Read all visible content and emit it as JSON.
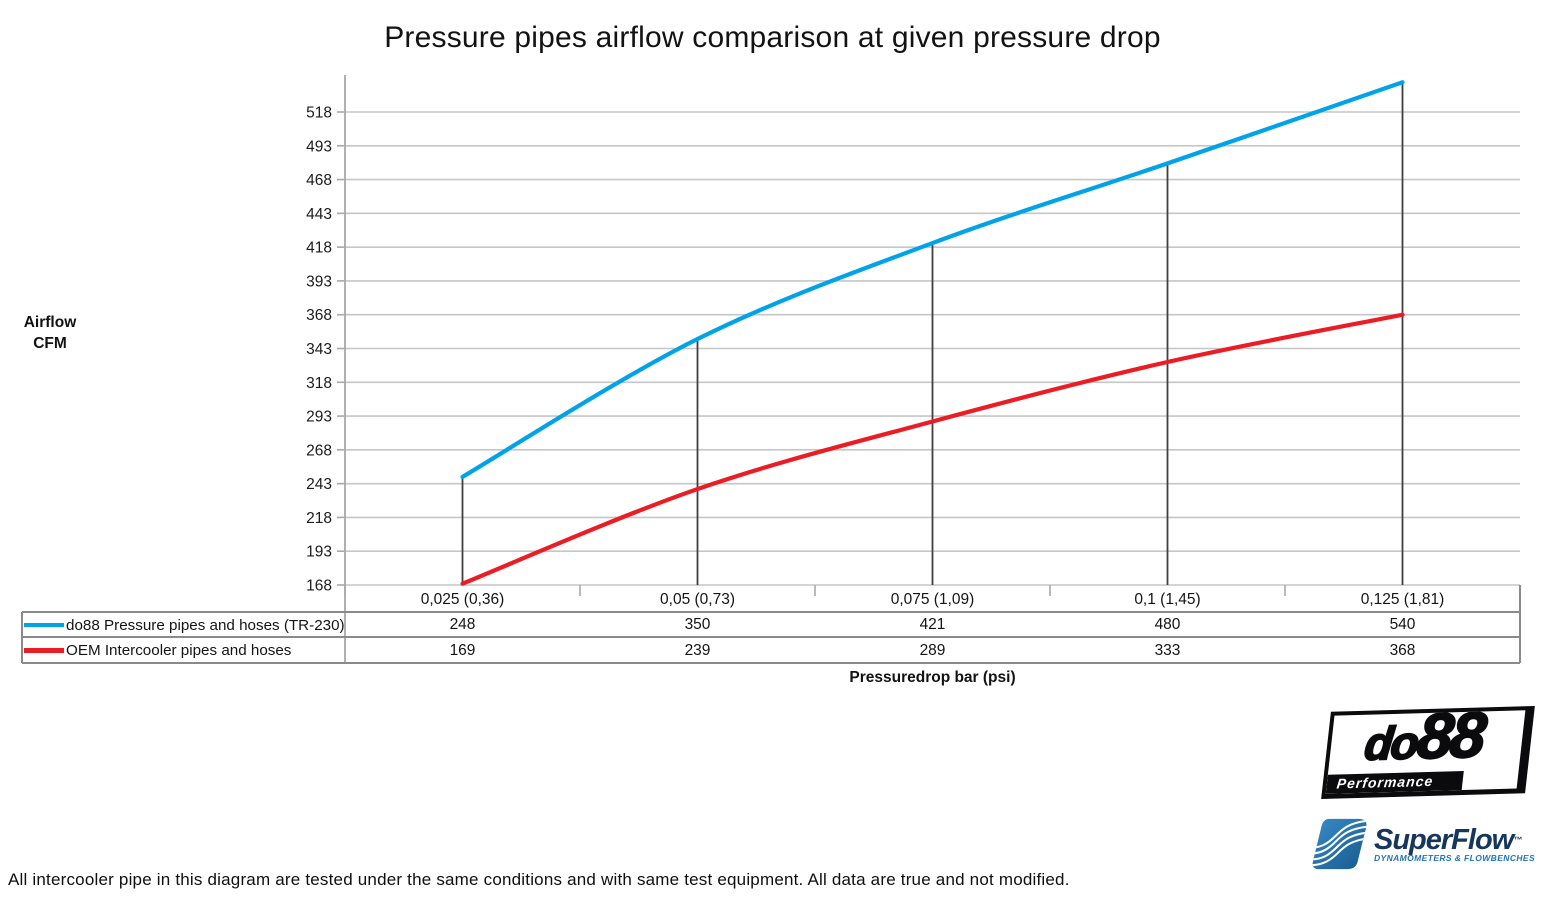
{
  "page": {
    "footnote": "All intercooler pipe in this diagram are tested under the same conditions and with same test equipment. All data are true and not modified."
  },
  "chart_data": {
    "type": "line",
    "title": "Pressure pipes airflow comparison at given pressure drop",
    "xlabel": "Pressuredrop bar (psi)",
    "ylabel": "Airflow CFM",
    "ylabel_lines": [
      "Airflow",
      "CFM"
    ],
    "categories": [
      "0,025 (0,36)",
      "0,05 (0,73)",
      "0,075 (1,09)",
      "0,1 (1,45)",
      "0,125 (1,81)"
    ],
    "series": [
      {
        "name": "do88 Pressure pipes and hoses (TR-230)",
        "color": "#00A3E8",
        "values": [
          248,
          350,
          421,
          480,
          540
        ]
      },
      {
        "name": "OEM Intercooler pipes and hoses",
        "color": "#EC1C24",
        "values": [
          169,
          239,
          289,
          333,
          368
        ]
      }
    ],
    "y_ticks": [
      168,
      193,
      218,
      243,
      268,
      293,
      318,
      343,
      368,
      393,
      418,
      443,
      468,
      493,
      518
    ],
    "ylim": [
      168,
      543
    ],
    "grid": true,
    "smooth_lines": true,
    "legend_position": "data-table-left",
    "drop_lines_from_series": "do88 Pressure pipes and hoses (TR-230)",
    "colors": {
      "gridline": "#C6C6C6",
      "axis": "#A8A8A8",
      "drop_line": "#3F3F3F",
      "table_border": "#8A8A8A",
      "tick_text": "#1B1B1B"
    }
  },
  "logos": {
    "do88": {
      "word_prefix": "do",
      "word_suffix": "88",
      "tagline": "Performance"
    },
    "superflow": {
      "name": "SuperFlow",
      "trademark": "™",
      "tagline": "DYNAMOMETERS & FLOWBENCHES"
    }
  }
}
